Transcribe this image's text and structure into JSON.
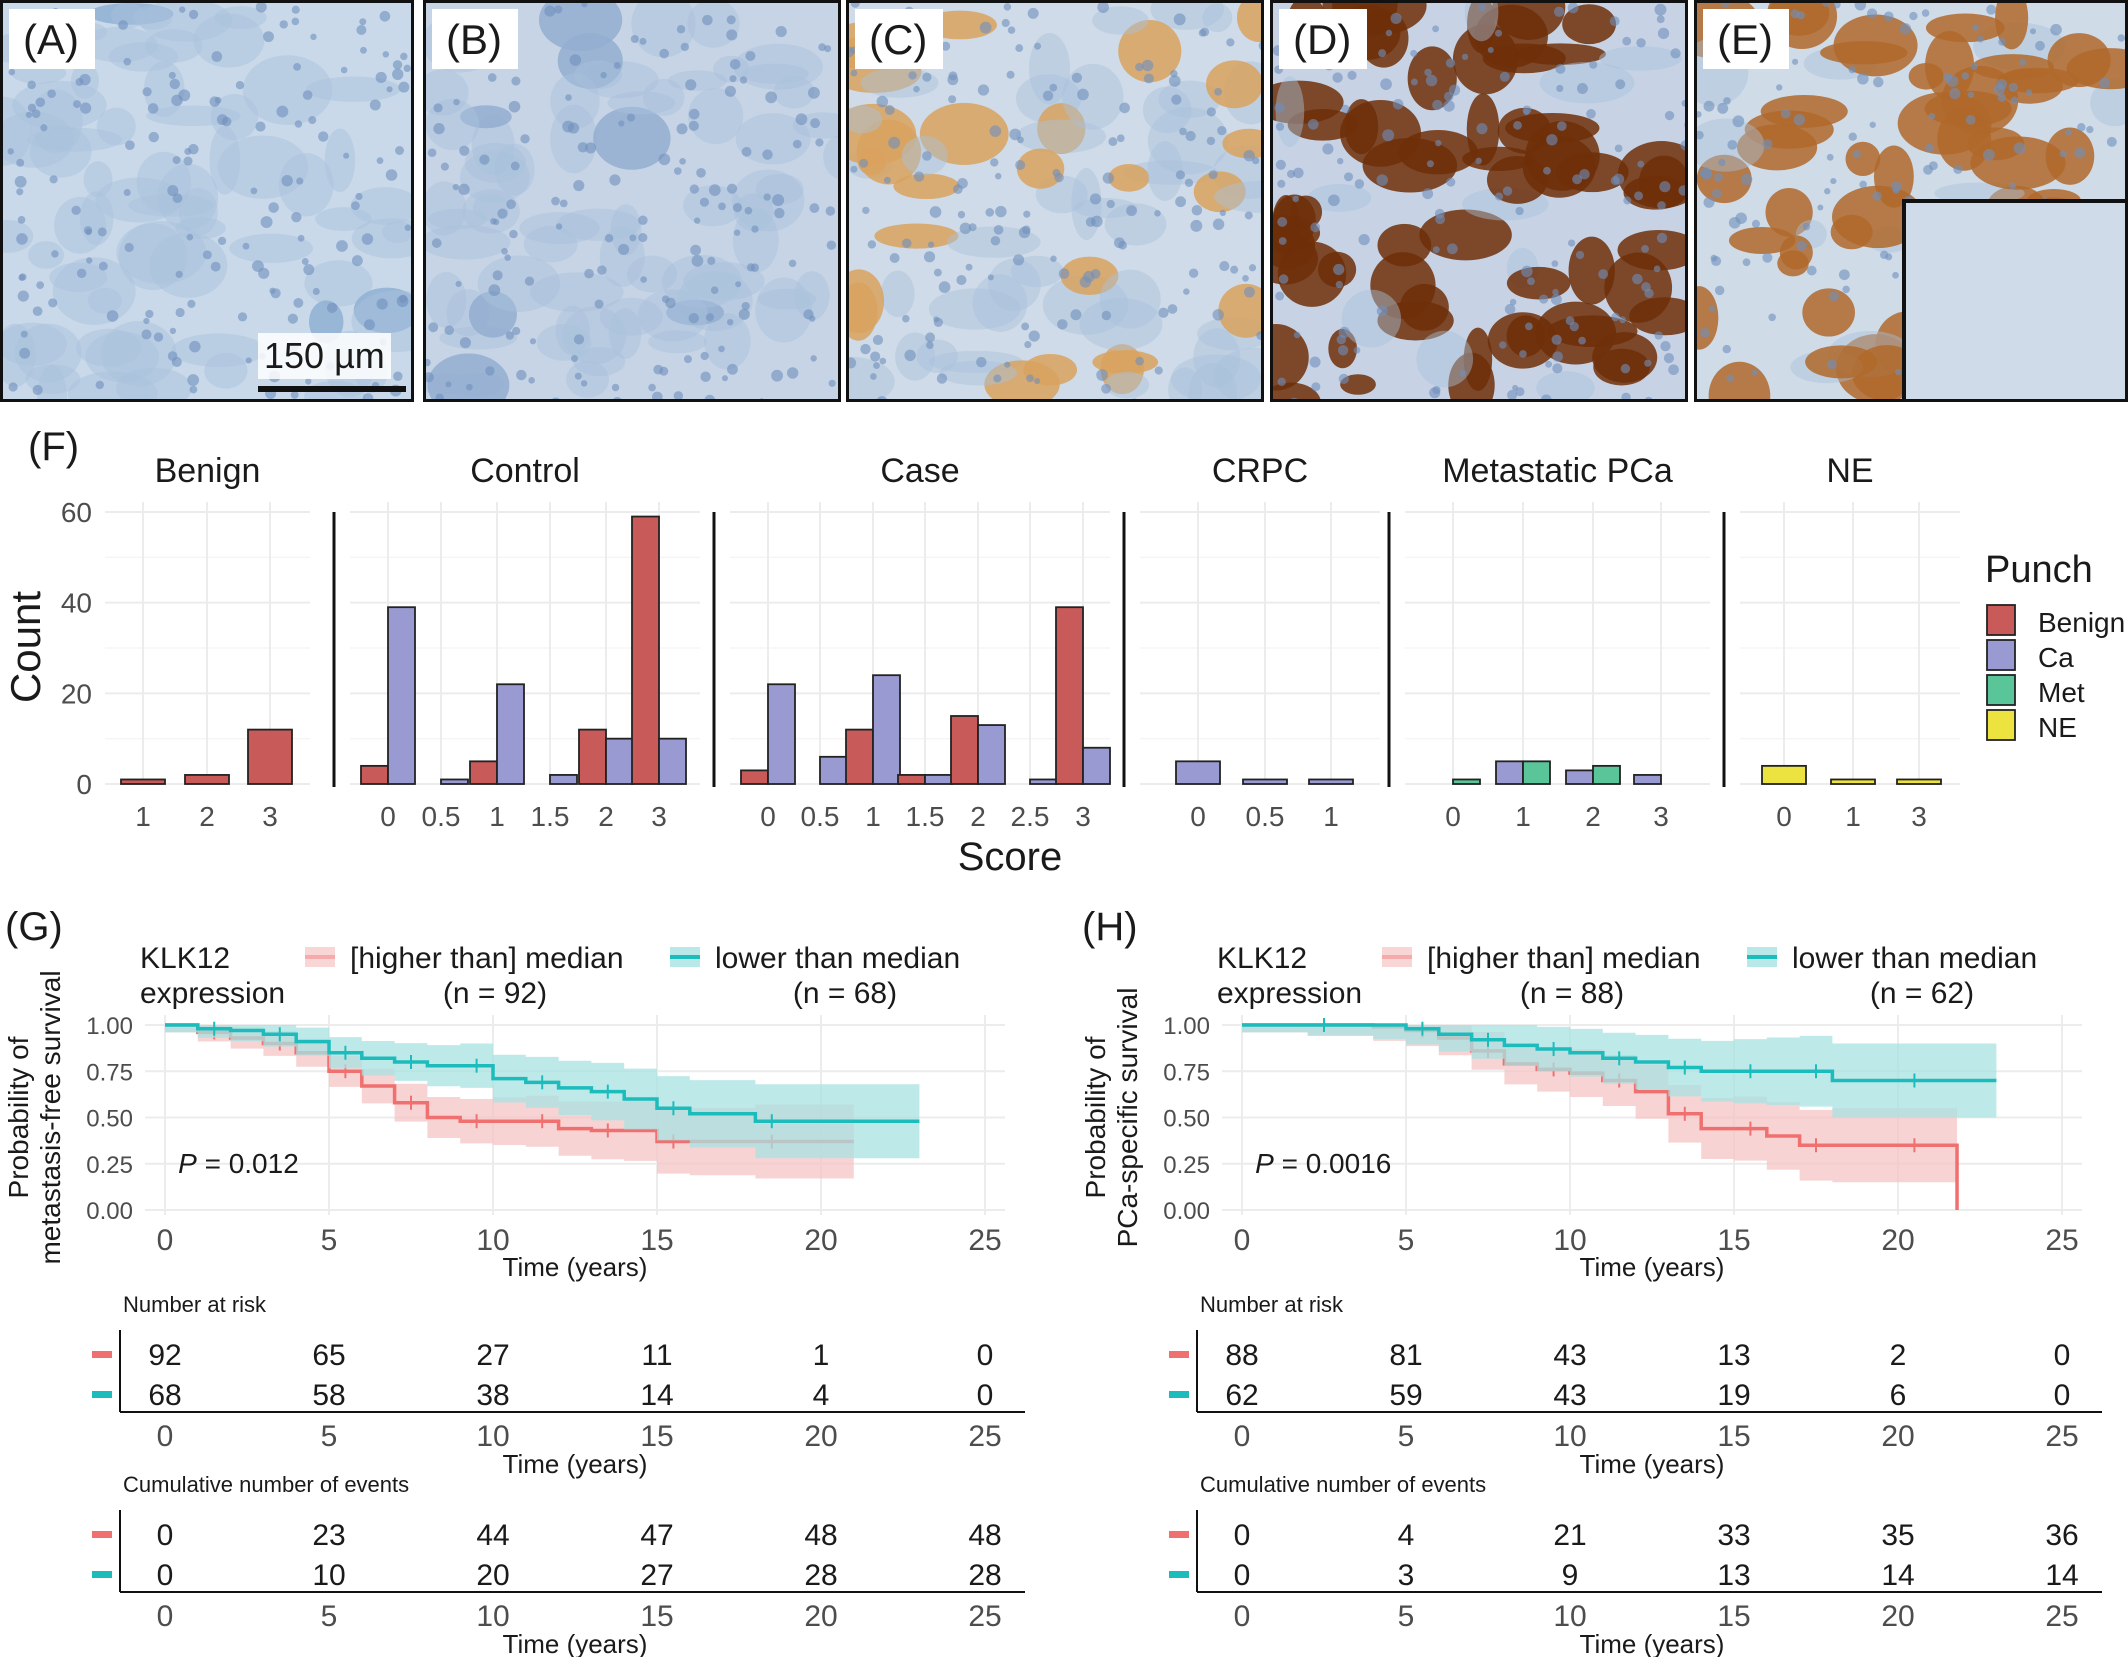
{
  "panels_top": [
    {
      "label": "(A)",
      "tone": "#c9d9ea",
      "blob": "#8fb0d4",
      "brown": 0.02
    },
    {
      "label": "(B)",
      "tone": "#c6d4e6",
      "blob": "#93aed0",
      "brown": 0.1
    },
    {
      "label": "(C)",
      "tone": "#cfdbe8",
      "blob": "#d9a25e",
      "brown": 0.35
    },
    {
      "label": "(D)",
      "tone": "#c7d3e5",
      "blob": "#6e2f08",
      "brown": 0.85
    },
    {
      "label": "(E)",
      "tone": "#d0dbe8",
      "blob": "#b0692a",
      "brown": 0.7
    }
  ],
  "scalebar": {
    "label": "150 µm"
  },
  "panel_f": {
    "label": "(F)",
    "ylabel": "Count",
    "xlabel": "Score",
    "yticks": [
      0,
      20,
      40,
      60
    ],
    "legend_title": "Punch",
    "legend": [
      {
        "name": "Benign",
        "color": "#c85a5a"
      },
      {
        "name": "Ca",
        "color": "#9a9ad2"
      },
      {
        "name": "Met",
        "color": "#5bc59a"
      },
      {
        "name": "NE",
        "color": "#ece341"
      }
    ]
  },
  "chart_data": [
    {
      "type": "bar",
      "title": "Benign",
      "categories": [
        "1",
        "2",
        "3"
      ],
      "series": [
        {
          "name": "Benign",
          "values": [
            1,
            2,
            12
          ]
        }
      ],
      "ylim": [
        0,
        60
      ]
    },
    {
      "type": "bar",
      "title": "Control",
      "categories": [
        "0",
        "0.5",
        "1",
        "1.5",
        "2",
        "3"
      ],
      "series": [
        {
          "name": "Benign",
          "values": [
            4,
            null,
            5,
            null,
            12,
            59
          ]
        },
        {
          "name": "Ca",
          "values": [
            39,
            1,
            22,
            2,
            10,
            10
          ]
        }
      ],
      "ylim": [
        0,
        60
      ]
    },
    {
      "type": "bar",
      "title": "Case",
      "categories": [
        "0",
        "0.5",
        "1",
        "1.5",
        "2",
        "2.5",
        "3"
      ],
      "series": [
        {
          "name": "Benign",
          "values": [
            3,
            null,
            12,
            2,
            15,
            null,
            39
          ]
        },
        {
          "name": "Ca",
          "values": [
            22,
            6,
            24,
            2,
            13,
            1,
            8
          ]
        }
      ],
      "ylim": [
        0,
        60
      ]
    },
    {
      "type": "bar",
      "title": "CRPC",
      "categories": [
        "0",
        "0.5",
        "1"
      ],
      "series": [
        {
          "name": "Ca",
          "values": [
            5,
            1,
            1
          ]
        }
      ],
      "ylim": [
        0,
        60
      ]
    },
    {
      "type": "bar",
      "title": "Metastatic PCa",
      "categories": [
        "0",
        "1",
        "2",
        "3"
      ],
      "series": [
        {
          "name": "Ca",
          "values": [
            null,
            5,
            3,
            2
          ]
        },
        {
          "name": "Met",
          "values": [
            1,
            5,
            4,
            null
          ]
        }
      ],
      "ylim": [
        0,
        60
      ]
    },
    {
      "type": "bar",
      "title": "NE",
      "categories": [
        "0",
        "1",
        "3"
      ],
      "series": [
        {
          "name": "NE",
          "values": [
            4,
            1,
            1
          ]
        }
      ],
      "ylim": [
        0,
        60
      ]
    },
    {
      "type": "line",
      "title": "KLK12 expression",
      "label": "(G)",
      "ylabel": "Probability of metastasis-free survival",
      "xlabel": "Time (years)",
      "pvalue": "= 0.012",
      "xlim": [
        0,
        25
      ],
      "ylim": [
        0,
        1
      ],
      "series": [
        {
          "name": "[higher than] median",
          "n": "(n = 92)",
          "x": [
            0,
            1,
            2,
            3,
            4,
            5,
            6,
            7,
            8,
            9,
            10,
            11,
            12,
            13,
            14,
            15,
            16,
            18,
            20,
            21
          ],
          "y": [
            1.0,
            0.96,
            0.93,
            0.9,
            0.85,
            0.75,
            0.67,
            0.58,
            0.5,
            0.48,
            0.48,
            0.48,
            0.44,
            0.43,
            0.43,
            0.37,
            0.37,
            0.37,
            0.37,
            0.37
          ]
        },
        {
          "name": "lower than median",
          "n": "(n = 68)",
          "x": [
            0,
            1,
            2,
            3,
            4,
            5,
            6,
            7,
            8,
            9,
            10,
            11,
            12,
            13,
            14,
            15,
            16,
            18,
            20,
            23
          ],
          "y": [
            1.0,
            0.98,
            0.97,
            0.95,
            0.91,
            0.85,
            0.82,
            0.8,
            0.78,
            0.78,
            0.71,
            0.69,
            0.66,
            0.64,
            0.6,
            0.55,
            0.52,
            0.48,
            0.48,
            0.48
          ]
        }
      ],
      "risk_table": {
        "title": "Number at risk",
        "times": [
          0,
          5,
          10,
          15,
          20,
          25
        ],
        "rows": [
          [
            92,
            65,
            27,
            11,
            1,
            0
          ],
          [
            68,
            58,
            38,
            14,
            4,
            0
          ]
        ]
      },
      "events_table": {
        "title": "Cumulative number of events",
        "times": [
          0,
          5,
          10,
          15,
          20,
          25
        ],
        "rows": [
          [
            0,
            23,
            44,
            47,
            48,
            48
          ],
          [
            0,
            10,
            20,
            27,
            28,
            28
          ]
        ]
      }
    },
    {
      "type": "line",
      "title": "KLK12 expression",
      "label": "(H)",
      "ylabel": "Probability of PCa-specific survival",
      "xlabel": "Time (years)",
      "pvalue": "= 0.0016",
      "xlim": [
        0,
        25
      ],
      "ylim": [
        0,
        1
      ],
      "series": [
        {
          "name": "[higher than] median",
          "n": "(n = 88)",
          "x": [
            0,
            2,
            4,
            5,
            6,
            7,
            8,
            9,
            10,
            11,
            12,
            13,
            14,
            15,
            16,
            17,
            18,
            20,
            21.8,
            21.8
          ],
          "y": [
            1.0,
            1.0,
            0.99,
            0.97,
            0.93,
            0.86,
            0.79,
            0.76,
            0.74,
            0.7,
            0.64,
            0.52,
            0.44,
            0.44,
            0.4,
            0.35,
            0.35,
            0.35,
            0.35,
            0.0
          ]
        },
        {
          "name": "lower than median",
          "n": "(n = 62)",
          "x": [
            0,
            2,
            4,
            5,
            6,
            7,
            8,
            9,
            10,
            11,
            12,
            13,
            14,
            15,
            16,
            17,
            18,
            20,
            23
          ],
          "y": [
            1.0,
            1.0,
            1.0,
            0.98,
            0.95,
            0.92,
            0.89,
            0.87,
            0.85,
            0.82,
            0.8,
            0.77,
            0.75,
            0.75,
            0.75,
            0.75,
            0.7,
            0.7,
            0.7
          ]
        }
      ],
      "risk_table": {
        "title": "Number at risk",
        "times": [
          0,
          5,
          10,
          15,
          20,
          25
        ],
        "rows": [
          [
            88,
            81,
            43,
            13,
            2,
            0
          ],
          [
            62,
            59,
            43,
            19,
            6,
            0
          ]
        ]
      },
      "events_table": {
        "title": "Cumulative number of events",
        "times": [
          0,
          5,
          10,
          15,
          20,
          25
        ],
        "rows": [
          [
            0,
            4,
            21,
            33,
            35,
            36
          ],
          [
            0,
            3,
            9,
            13,
            14,
            14
          ]
        ]
      }
    }
  ],
  "colors": {
    "high": "#f07070",
    "low": "#1dbcbc",
    "high_band": "#f6c4c4",
    "low_band": "#a8e2e2",
    "grid": "#ececec",
    "axis_text": "#4d4d4d"
  },
  "p_symbol": "P"
}
